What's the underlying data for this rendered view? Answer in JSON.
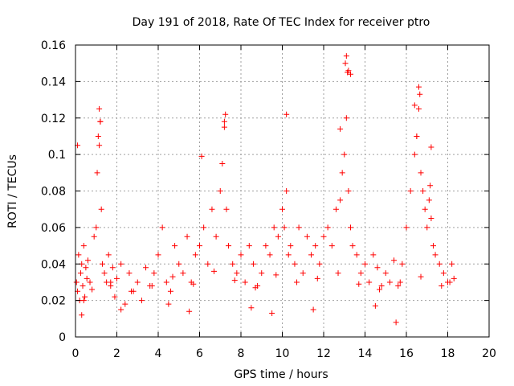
{
  "chart_data": {
    "type": "scatter",
    "title": "Day 191 of 2018, Rate Of TEC Index for receiver ptro",
    "xlabel": "GPS time / hours",
    "ylabel": "ROTI / TECUs",
    "xlim": [
      0,
      20
    ],
    "ylim": [
      0,
      0.16
    ],
    "xticks": [
      0,
      2,
      4,
      6,
      8,
      10,
      12,
      14,
      16,
      18,
      20
    ],
    "yticks": [
      0,
      0.02,
      0.04,
      0.06,
      0.08,
      0.1,
      0.12,
      0.14,
      0.16
    ],
    "xtick_labels": [
      "0",
      "2",
      "4",
      "6",
      "8",
      "10",
      "12",
      "14",
      "16",
      "18",
      "20"
    ],
    "ytick_labels": [
      "0",
      "0.02",
      "0.04",
      "0.06",
      "0.08",
      "0.1",
      "0.12",
      "0.14",
      "0.16"
    ],
    "grid": true,
    "marker": "+",
    "color": "#ff0000",
    "series": [
      {
        "name": "ROTI",
        "x": [
          0.05,
          0.1,
          0.15,
          0.2,
          0.25,
          0.3,
          0.35,
          0.4,
          0.45,
          0.5,
          0.55,
          0.6,
          0.7,
          0.8,
          0.9,
          1.0,
          1.05,
          1.1,
          1.15,
          1.2,
          1.25,
          1.3,
          1.4,
          1.5,
          1.6,
          1.7,
          1.8,
          1.9,
          2.0,
          2.2,
          2.4,
          2.6,
          2.8,
          3.0,
          3.2,
          3.4,
          3.6,
          3.8,
          4.0,
          4.2,
          4.4,
          4.6,
          4.8,
          5.0,
          5.2,
          5.4,
          5.6,
          5.8,
          6.0,
          6.2,
          6.4,
          6.6,
          6.8,
          7.0,
          7.1,
          7.2,
          7.3,
          7.4,
          7.6,
          7.8,
          8.0,
          8.2,
          8.4,
          8.6,
          8.8,
          9.0,
          9.2,
          9.4,
          9.6,
          9.8,
          10.0,
          10.1,
          10.2,
          10.3,
          10.4,
          10.6,
          10.8,
          11.0,
          11.2,
          11.4,
          11.6,
          11.8,
          12.0,
          12.2,
          12.4,
          12.6,
          12.8,
          12.9,
          13.0,
          13.05,
          13.1,
          13.15,
          13.2,
          13.3,
          13.4,
          13.6,
          13.8,
          14.0,
          14.2,
          14.4,
          14.6,
          14.8,
          15.0,
          15.2,
          15.4,
          15.6,
          15.8,
          16.0,
          16.2,
          16.4,
          16.5,
          16.6,
          16.7,
          16.8,
          16.9,
          17.0,
          17.1,
          17.2,
          17.3,
          17.4,
          17.6,
          17.8,
          18.0,
          18.2,
          18.3,
          0.1,
          1.15,
          1.2,
          6.1,
          7.25,
          7.2,
          10.2,
          12.8,
          13.1,
          13.2,
          13.3,
          16.4,
          16.5,
          16.6,
          16.65,
          17.2,
          17.15,
          0.3,
          2.2,
          4.5,
          5.5,
          8.5,
          9.5,
          11.5,
          14.5,
          15.5,
          0.4,
          1.7,
          2.7,
          3.7,
          4.7,
          5.7,
          6.7,
          7.7,
          8.7,
          9.7,
          10.7,
          11.7,
          12.7,
          13.7,
          14.7,
          15.7,
          16.7,
          17.7,
          18.1
        ],
        "y": [
          0.03,
          0.025,
          0.045,
          0.02,
          0.035,
          0.04,
          0.028,
          0.05,
          0.022,
          0.038,
          0.032,
          0.042,
          0.03,
          0.026,
          0.055,
          0.06,
          0.09,
          0.11,
          0.105,
          0.118,
          0.07,
          0.04,
          0.035,
          0.03,
          0.045,
          0.028,
          0.038,
          0.022,
          0.032,
          0.04,
          0.018,
          0.035,
          0.025,
          0.03,
          0.02,
          0.038,
          0.028,
          0.035,
          0.045,
          0.06,
          0.03,
          0.025,
          0.05,
          0.04,
          0.035,
          0.055,
          0.03,
          0.045,
          0.05,
          0.06,
          0.04,
          0.07,
          0.055,
          0.08,
          0.095,
          0.115,
          0.07,
          0.05,
          0.04,
          0.035,
          0.045,
          0.03,
          0.05,
          0.04,
          0.028,
          0.035,
          0.05,
          0.045,
          0.06,
          0.055,
          0.07,
          0.06,
          0.08,
          0.045,
          0.05,
          0.04,
          0.06,
          0.035,
          0.055,
          0.045,
          0.05,
          0.04,
          0.055,
          0.06,
          0.05,
          0.07,
          0.075,
          0.09,
          0.1,
          0.15,
          0.12,
          0.145,
          0.08,
          0.06,
          0.05,
          0.045,
          0.035,
          0.04,
          0.03,
          0.045,
          0.038,
          0.028,
          0.035,
          0.03,
          0.042,
          0.028,
          0.04,
          0.06,
          0.08,
          0.1,
          0.11,
          0.125,
          0.09,
          0.08,
          0.07,
          0.06,
          0.075,
          0.065,
          0.05,
          0.045,
          0.04,
          0.035,
          0.03,
          0.04,
          0.032,
          0.105,
          0.125,
          0.118,
          0.099,
          0.122,
          0.118,
          0.122,
          0.114,
          0.154,
          0.146,
          0.144,
          0.127,
          0.11,
          0.137,
          0.133,
          0.104,
          0.083,
          0.012,
          0.015,
          0.018,
          0.014,
          0.016,
          0.013,
          0.015,
          0.017,
          0.008,
          0.02,
          0.03,
          0.025,
          0.028,
          0.033,
          0.029,
          0.036,
          0.031,
          0.027,
          0.034,
          0.03,
          0.032,
          0.035,
          0.029,
          0.026,
          0.03,
          0.033,
          0.028,
          0.03
        ]
      }
    ]
  }
}
